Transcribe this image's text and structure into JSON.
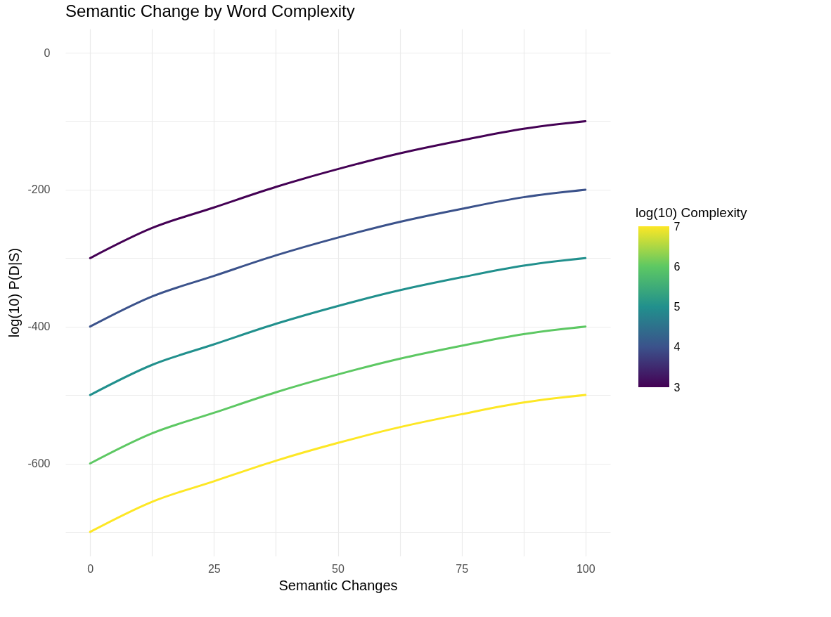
{
  "chart_data": {
    "type": "line",
    "title": "Semantic Change by Word Complexity",
    "xlabel": "Semantic Changes",
    "ylabel": "log(10) P(D|S)",
    "clabel": "log(10) Complexity",
    "clim": [
      3,
      7
    ],
    "cticks": [
      3,
      4,
      5,
      6,
      7
    ],
    "x": [
      0,
      12.5,
      25,
      37.5,
      50,
      62.5,
      75,
      87.5,
      100
    ],
    "series": [
      {
        "color": "#440154",
        "values": [
          -300,
          -256,
          -226,
          -196,
          -170,
          -147,
          -128,
          -111,
          -100
        ]
      },
      {
        "color": "#3b528b",
        "values": [
          -400,
          -356,
          -326,
          -296,
          -270,
          -247,
          -228,
          -211,
          -200
        ]
      },
      {
        "color": "#21908d",
        "values": [
          -500,
          -456,
          -426,
          -396,
          -370,
          -347,
          -328,
          -311,
          -300
        ]
      },
      {
        "color": "#5dc863",
        "values": [
          -600,
          -556,
          -526,
          -496,
          -470,
          -447,
          -428,
          -411,
          -400
        ]
      },
      {
        "color": "#fde725",
        "values": [
          -700,
          -656,
          -626,
          -596,
          -570,
          -547,
          -528,
          -511,
          -500
        ]
      }
    ],
    "xlim": [
      -5,
      105
    ],
    "ylim": [
      -735,
      35
    ],
    "xticks": [
      0,
      {
        "value": 12.5,
        "label": null
      },
      25,
      {
        "value": 37.5,
        "label": null
      },
      50,
      {
        "value": 62.5,
        "label": null
      },
      75,
      {
        "value": 87.5,
        "label": null
      },
      100
    ],
    "yticks": [
      {
        "value": -700,
        "label": null
      },
      -600,
      {
        "value": -500,
        "label": null
      },
      -400,
      {
        "value": -300,
        "label": null
      },
      -200,
      {
        "value": -100,
        "label": null
      },
      0
    ],
    "grid": true,
    "line_style": "solid"
  }
}
